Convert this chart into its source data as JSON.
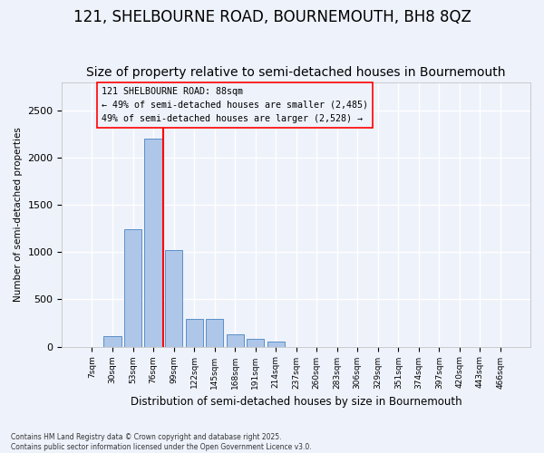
{
  "title": "121, SHELBOURNE ROAD, BOURNEMOUTH, BH8 8QZ",
  "subtitle": "Size of property relative to semi-detached houses in Bournemouth",
  "xlabel": "Distribution of semi-detached houses by size in Bournemouth",
  "ylabel": "Number of semi-detached properties",
  "bin_labels": [
    "7sqm",
    "30sqm",
    "53sqm",
    "76sqm",
    "99sqm",
    "122sqm",
    "145sqm",
    "168sqm",
    "191sqm",
    "214sqm",
    "237sqm",
    "260sqm",
    "283sqm",
    "306sqm",
    "329sqm",
    "351sqm",
    "374sqm",
    "397sqm",
    "420sqm",
    "443sqm",
    "466sqm"
  ],
  "bar_heights": [
    0,
    110,
    1240,
    2200,
    1020,
    290,
    290,
    130,
    80,
    50,
    0,
    0,
    0,
    0,
    0,
    0,
    0,
    0,
    0,
    0,
    0
  ],
  "bar_color": "#aec6e8",
  "bar_edge_color": "#5b8fc9",
  "vline_x": 3.5,
  "vline_color": "red",
  "annotation_title": "121 SHELBOURNE ROAD: 88sqm",
  "annotation_line1": "← 49% of semi-detached houses are smaller (2,485)",
  "annotation_line2": "49% of semi-detached houses are larger (2,528) →",
  "ylim": [
    0,
    2800
  ],
  "yticks": [
    0,
    500,
    1000,
    1500,
    2000,
    2500
  ],
  "footnote": "Contains HM Land Registry data © Crown copyright and database right 2025.\nContains public sector information licensed under the Open Government Licence v3.0.",
  "bg_color": "#eef2fb",
  "grid_color": "white",
  "title_fontsize": 12,
  "subtitle_fontsize": 10
}
